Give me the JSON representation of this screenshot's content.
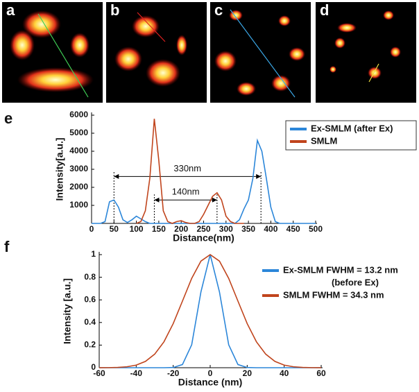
{
  "panel_labels": [
    "a",
    "b",
    "c",
    "d",
    "e",
    "f"
  ],
  "chart_data": [
    {
      "type": "line",
      "y_label": "Intensity[a.u.]",
      "x_label": "Distance(nm)",
      "xlim": [
        0,
        500
      ],
      "xticks": [
        0,
        50,
        100,
        150,
        200,
        250,
        300,
        350,
        400,
        450,
        500
      ],
      "ylim": [
        0,
        6000
      ],
      "yticks": [
        1000,
        2000,
        3000,
        4000,
        5000,
        6000
      ],
      "legend": "upper right",
      "legend_border": true,
      "x": [
        0,
        10,
        20,
        30,
        40,
        50,
        60,
        70,
        80,
        90,
        100,
        110,
        120,
        130,
        140,
        150,
        160,
        170,
        180,
        190,
        200,
        210,
        220,
        230,
        240,
        250,
        260,
        270,
        280,
        290,
        300,
        310,
        320,
        330,
        340,
        350,
        360,
        370,
        380,
        390,
        400,
        410,
        420,
        430,
        440,
        450,
        460,
        470,
        480,
        490,
        500
      ],
      "series": [
        {
          "name": "Ex-SMLM (after Ex)",
          "color": "#2b86d9",
          "values": [
            0,
            0,
            0,
            100,
            1200,
            1300,
            900,
            200,
            50,
            200,
            400,
            250,
            100,
            0,
            0,
            0,
            0,
            0,
            0,
            0,
            0,
            0,
            0,
            0,
            0,
            0,
            0,
            0,
            0,
            0,
            0,
            0,
            0,
            200,
            800,
            1300,
            2500,
            4600,
            4000,
            2500,
            900,
            100,
            0,
            0,
            0,
            0,
            0,
            0,
            0,
            0,
            0
          ]
        },
        {
          "name": "SMLM",
          "color": "#c0441c",
          "values": [
            null,
            null,
            null,
            null,
            null,
            null,
            null,
            null,
            null,
            null,
            0,
            100,
            700,
            2500,
            5800,
            3500,
            700,
            100,
            0,
            100,
            150,
            50,
            0,
            0,
            100,
            500,
            1000,
            1500,
            1700,
            1300,
            400,
            100,
            0,
            0,
            0,
            null,
            null,
            null,
            null,
            null,
            null,
            null,
            null,
            null,
            null,
            null,
            null,
            null,
            null,
            null,
            null
          ]
        }
      ],
      "annotations": [
        {
          "text": "330nm",
          "x": [
            50,
            378
          ],
          "y": 2600
        },
        {
          "text": "140nm",
          "x": [
            140,
            280
          ],
          "y": 1300
        }
      ]
    },
    {
      "type": "line",
      "y_label": "Intensity [a.u.]",
      "x_label": "Distance (nm)",
      "xlim": [
        -60,
        60
      ],
      "xticks": [
        -60,
        -40,
        -20,
        0,
        20,
        40,
        60
      ],
      "ylim": [
        0,
        1
      ],
      "yticks": [
        0,
        0.2,
        0.4,
        0.6,
        0.8,
        1
      ],
      "legend": "upper right",
      "legend_border": false,
      "x": [
        -60,
        -55,
        -50,
        -45,
        -40,
        -35,
        -30,
        -25,
        -20,
        -15,
        -10,
        -5,
        0,
        5,
        10,
        15,
        20,
        25,
        30,
        35,
        40,
        45,
        50,
        55,
        60
      ],
      "series": [
        {
          "name": "Ex-SMLM FWHM = 13.2 nm",
          "legend_subtext": "(before Ex)",
          "color": "#2b86d9",
          "values": [
            0,
            0,
            0,
            0,
            0,
            0,
            0,
            0,
            0.0017,
            0.028,
            0.203,
            0.671,
            1,
            0.671,
            0.203,
            0.028,
            0.0017,
            0,
            0,
            0,
            0,
            0,
            0,
            0,
            0
          ]
        },
        {
          "name": "SMLM FWHM = 34.3 nm",
          "color": "#c0441c",
          "values": [
            0.0002,
            0.0008,
            0.0028,
            0.0085,
            0.023,
            0.056,
            0.12,
            0.229,
            0.39,
            0.589,
            0.79,
            0.943,
            1,
            0.943,
            0.79,
            0.589,
            0.39,
            0.229,
            0.12,
            0.056,
            0.023,
            0.0085,
            0.0028,
            0.0008,
            0.0002
          ]
        }
      ]
    }
  ]
}
